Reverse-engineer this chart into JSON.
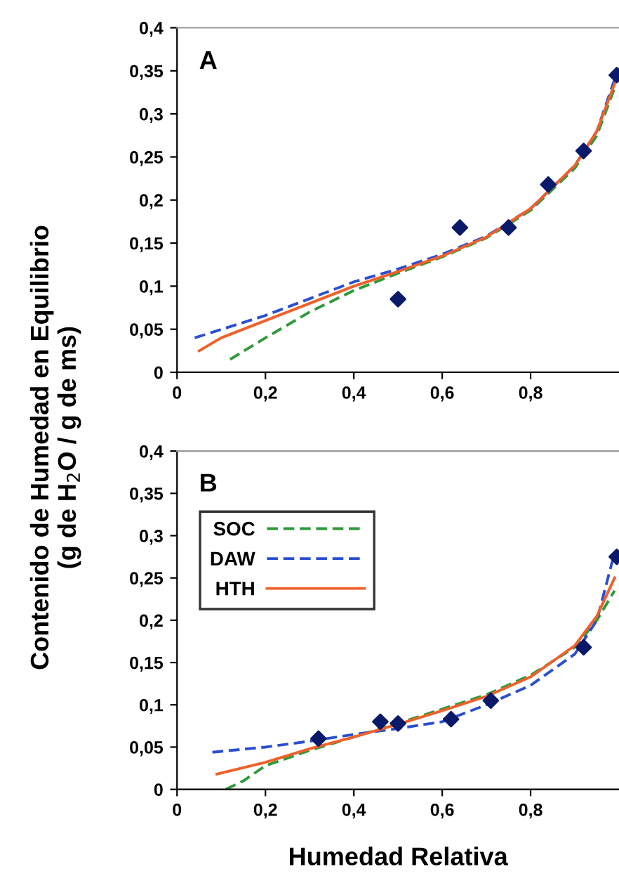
{
  "chart_data": [
    {
      "type": "line",
      "ylabel": "Contenido de Humedad en Equilibrio\n(g de H$_{2}$O / g de ms)",
      "annotations": [
        "A"
      ],
      "xlim": [
        0,
        1
      ],
      "ylim": [
        0,
        0.4
      ],
      "xticks": [
        0,
        {
          "value": 0.2,
          "label": "0,2"
        },
        {
          "value": 0.4,
          "label": "0,4"
        },
        {
          "value": 0.6,
          "label": "0,6"
        },
        {
          "value": 0.8,
          "label": "0,8"
        }
      ],
      "yticks": [
        0,
        {
          "value": 0.05,
          "label": "0,05"
        },
        {
          "value": 0.1,
          "label": "0,1"
        },
        {
          "value": 0.15,
          "label": "0,15"
        },
        {
          "value": 0.2,
          "label": "0,2"
        },
        {
          "value": 0.25,
          "label": "0,25"
        },
        {
          "value": 0.3,
          "label": "0,3"
        },
        {
          "value": 0.35,
          "label": "0,35"
        },
        {
          "value": 0.4,
          "label": "0,4"
        }
      ],
      "grid": false,
      "legend": false,
      "series": [
        {
          "line_style": "dashed",
          "color": "#2e9a3a",
          "x": [
            0.12,
            0.2,
            0.3,
            0.4,
            0.5,
            0.6,
            0.7,
            0.8,
            0.9,
            0.95,
            0.99
          ],
          "values": [
            0.015,
            0.04,
            0.07,
            0.095,
            0.115,
            0.134,
            0.156,
            0.188,
            0.237,
            0.275,
            0.33
          ]
        },
        {
          "line_style": "dashed",
          "color": "#2a4fd0",
          "x": [
            0.04,
            0.2,
            0.4,
            0.5,
            0.6,
            0.7,
            0.8,
            0.9,
            0.95,
            0.99
          ],
          "values": [
            0.04,
            0.066,
            0.105,
            0.12,
            0.137,
            0.158,
            0.19,
            0.24,
            0.28,
            0.34
          ]
        },
        {
          "line_style": "solid",
          "color": "#f0602a",
          "x": [
            0.05,
            0.1,
            0.2,
            0.3,
            0.4,
            0.5,
            0.6,
            0.7,
            0.8,
            0.9,
            0.95,
            0.99
          ],
          "values": [
            0.025,
            0.04,
            0.06,
            0.08,
            0.1,
            0.117,
            0.135,
            0.157,
            0.19,
            0.24,
            0.28,
            0.335
          ]
        },
        {
          "type": "scatter",
          "marker": "diamond",
          "color": "#0a1a6a",
          "x": [
            0.5,
            0.64,
            0.75,
            0.84,
            0.92,
            0.995
          ],
          "values": [
            0.085,
            0.168,
            0.168,
            0.218,
            0.257,
            0.345
          ]
        }
      ]
    },
    {
      "type": "line",
      "xlabel": "Humedad Relativa",
      "annotations": [
        "B"
      ],
      "xlim": [
        0,
        1
      ],
      "ylim": [
        0,
        0.4
      ],
      "xticks": [
        0,
        {
          "value": 0.2,
          "label": "0,2"
        },
        {
          "value": 0.4,
          "label": "0,4"
        },
        {
          "value": 0.6,
          "label": "0,6"
        },
        {
          "value": 0.8,
          "label": "0,8"
        }
      ],
      "yticks": [
        0,
        {
          "value": 0.05,
          "label": "0,05"
        },
        {
          "value": 0.1,
          "label": "0,1"
        },
        {
          "value": 0.15,
          "label": "0,15"
        },
        {
          "value": 0.2,
          "label": "0,2"
        },
        {
          "value": 0.25,
          "label": "0,25"
        },
        {
          "value": 0.3,
          "label": "0,3"
        },
        {
          "value": 0.35,
          "label": "0,35"
        },
        {
          "value": 0.4,
          "label": "0,4"
        }
      ],
      "grid": false,
      "legend": "top left",
      "series": [
        {
          "name": "SOC",
          "line_style": "dashed",
          "color": "#2e9a3a",
          "x": [
            0.11,
            0.15,
            0.2,
            0.3,
            0.4,
            0.5,
            0.6,
            0.7,
            0.8,
            0.9,
            0.95,
            0.99
          ],
          "values": [
            0,
            0.01,
            0.028,
            0.046,
            0.062,
            0.078,
            0.095,
            0.112,
            0.135,
            0.168,
            0.2,
            0.235
          ]
        },
        {
          "name": "DAW",
          "line_style": "dashed",
          "color": "#2a4fd0",
          "x": [
            0.08,
            0.2,
            0.3,
            0.4,
            0.5,
            0.6,
            0.7,
            0.8,
            0.9,
            0.95,
            0.99
          ],
          "values": [
            0.044,
            0.05,
            0.057,
            0.065,
            0.072,
            0.08,
            0.1,
            0.123,
            0.16,
            0.2,
            0.28
          ]
        },
        {
          "name": "HTH",
          "line_style": "solid",
          "color": "#f0602a",
          "x": [
            0.09,
            0.2,
            0.3,
            0.4,
            0.5,
            0.6,
            0.7,
            0.8,
            0.9,
            0.95,
            0.99
          ],
          "values": [
            0.018,
            0.032,
            0.048,
            0.062,
            0.077,
            0.093,
            0.11,
            0.133,
            0.17,
            0.205,
            0.25
          ]
        },
        {
          "type": "scatter",
          "marker": "diamond",
          "color": "#0a1a6a",
          "x": [
            0.32,
            0.46,
            0.5,
            0.62,
            0.71,
            0.92,
            0.995
          ],
          "values": [
            0.06,
            0.08,
            0.078,
            0.083,
            0.105,
            0.168,
            0.275
          ]
        }
      ]
    }
  ]
}
